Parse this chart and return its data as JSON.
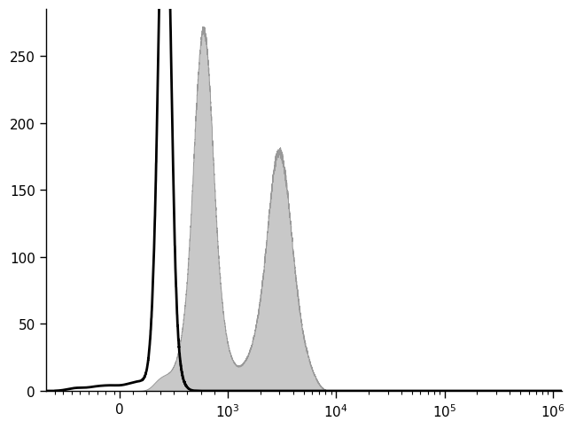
{
  "title": "",
  "xlabel": "",
  "ylabel": "",
  "ylim": [
    0,
    285
  ],
  "yticks": [
    0,
    50,
    100,
    150,
    200,
    250
  ],
  "background_color": "#ffffff",
  "black_histogram_color": "#000000",
  "gray_histogram_color": "#c8c8c8",
  "gray_histogram_edge_color": "#999999",
  "linewidth_black": 2.0,
  "linewidth_gray": 0.7,
  "xlim_left": -0.68,
  "xlim_right": 4.08,
  "xtick_positions": [
    0.0,
    1.0,
    2.0,
    3.0,
    4.0
  ],
  "xtick_labels": [
    "0",
    "$10^3$",
    "$10^4$",
    "$10^5$",
    "$10^6$"
  ],
  "neg_zero_display": -0.18,
  "black_peak_display": 0.42,
  "gray_peak1_display": 0.72,
  "gray_peak2_display": 1.52
}
